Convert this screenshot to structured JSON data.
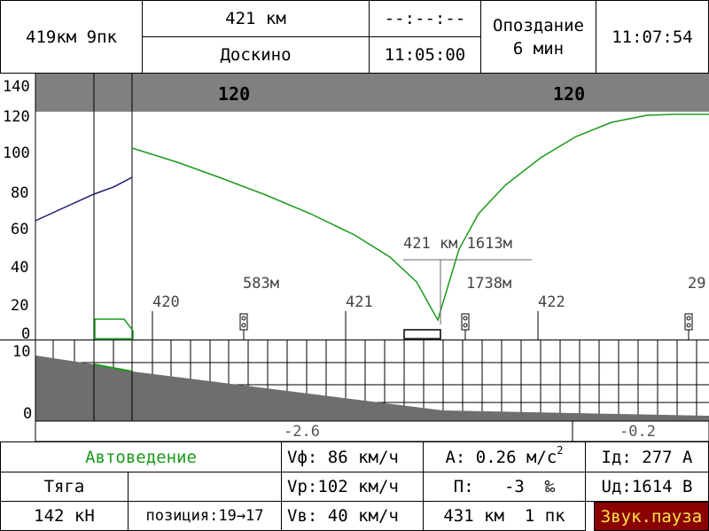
{
  "header": {
    "location": "419км 9пк",
    "distance": "421 км",
    "station": "Доскино",
    "time_dashes": "--:--:--",
    "scheduled_time": "11:05:00",
    "delay_label": "Опоздание",
    "delay_value": "6 мин",
    "clock": "11:07:54"
  },
  "speed_chart": {
    "y_ticks": [
      "140",
      "120",
      "100",
      "80",
      "60",
      "40",
      "20",
      "0"
    ],
    "limit_left": "120",
    "limit_right": "120",
    "km_markers": [
      "420",
      "421",
      "422",
      "29"
    ],
    "distance_labels": [
      "583м",
      "1738м"
    ],
    "target_label": "421 км 1613м",
    "colors": {
      "speed_curve": "#1a9a1a",
      "actual_speed": "#1a1a6e",
      "limit_band": "#808080"
    }
  },
  "profile": {
    "y_ticks": [
      "10",
      "0"
    ],
    "gradients": [
      "-2.6",
      "-0.2"
    ]
  },
  "status": {
    "mode": "Автоведение",
    "mode_label": "Тяга",
    "force": "142 кН",
    "position": "позиция:19→17",
    "vf": "Vф: 86 км/ч",
    "vr": "Vр:102 км/ч",
    "vb": "Vв: 40 км/ч",
    "accel_prefix": "A: 0.26 м/с",
    "accel_exp": "2",
    "slope": "П:   -3  ‰",
    "odometer": "431 км  1 пк",
    "current": "Iд: 277 А",
    "voltage": "Uд:1614 В",
    "sound": "Звук.пауза"
  }
}
